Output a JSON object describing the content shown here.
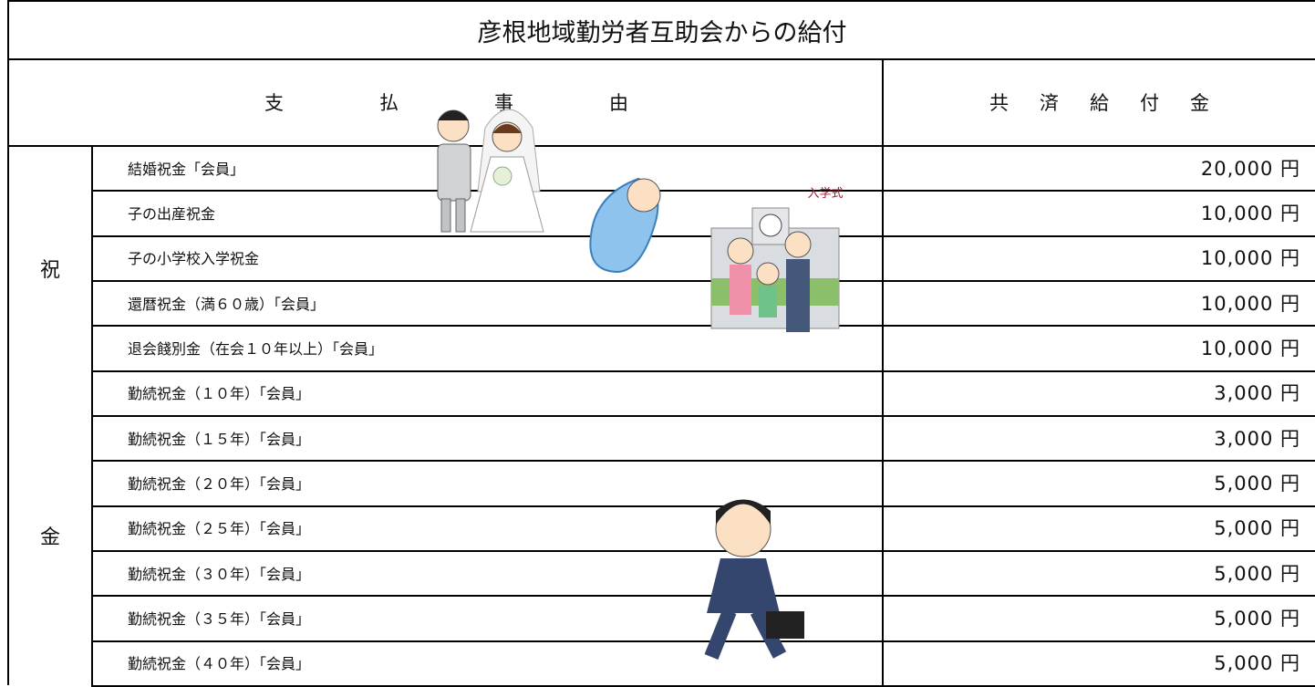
{
  "title": "彦根地域勤労者互助会からの給付",
  "header": {
    "reason": "支払事由",
    "amount": "共済給付金"
  },
  "category": [
    "祝",
    "金"
  ],
  "rows": [
    [
      "結婚祝金「会員」",
      "20,000 円"
    ],
    [
      "子の出産祝金",
      "10,000 円"
    ],
    [
      "子の小学校入学祝金",
      "10,000 円"
    ],
    [
      "還暦祝金（満６０歳）「会員」",
      "10,000 円"
    ],
    [
      "退会餞別金（在会１０年以上）「会員」",
      "10,000 円"
    ],
    [
      "勤続祝金（１０年）「会員」",
      "3,000 円"
    ],
    [
      "勤続祝金（１５年）「会員」",
      "3,000 円"
    ],
    [
      "勤続祝金（２０年）「会員」",
      "5,000 円"
    ],
    [
      "勤続祝金（２５年）「会員」",
      "5,000 円"
    ],
    [
      "勤続祝金（３０年）「会員」",
      "5,000 円"
    ],
    [
      "勤続祝金（３５年）「会員」",
      "5,000 円"
    ],
    [
      "勤続祝金（４０年）「会員」",
      "5,000 円"
    ]
  ],
  "illustration_sign": "入学式"
}
